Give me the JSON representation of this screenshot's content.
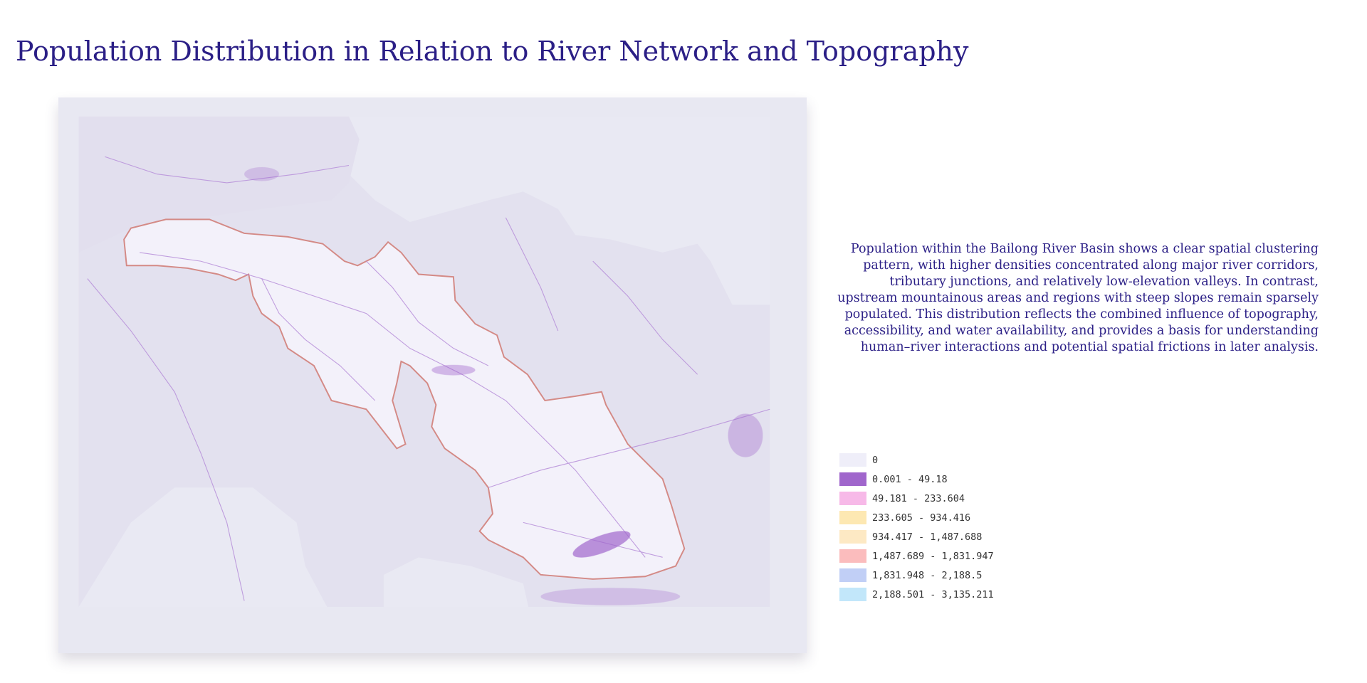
{
  "title": "Population Distribution in Relation to River Network and Topography",
  "description": "Population within the Bailong River Basin shows a clear spatial clustering pattern, with higher densities concentrated along major river corridors, tributary junctions, and relatively low-elevation valleys. In contrast, upstream mountainous areas and regions with steep slopes remain sparsely populated. This distribution reflects the combined influence of topography, accessibility, and water availability, and provides a basis for understanding human–river interactions and potential spatial frictions in later analysis.",
  "legend": [
    {
      "label": "0",
      "color": "#efeef9"
    },
    {
      "label": "0.001 - 49.18",
      "color": "#a066cc"
    },
    {
      "label": "49.181 - 233.604",
      "color": "#f7b9e8"
    },
    {
      "label": "233.605 - 934.416",
      "color": "#fde8b2"
    },
    {
      "label": "934.417 - 1,487.688",
      "color": "#fde9c4"
    },
    {
      "label": "1,487.689 - 1,831.947",
      "color": "#fbbcbd"
    },
    {
      "label": "1,831.948 - 2,188.5",
      "color": "#c1cff6"
    },
    {
      "label": "2,188.501 - 3,135.211",
      "color": "#c2e7fa"
    }
  ]
}
